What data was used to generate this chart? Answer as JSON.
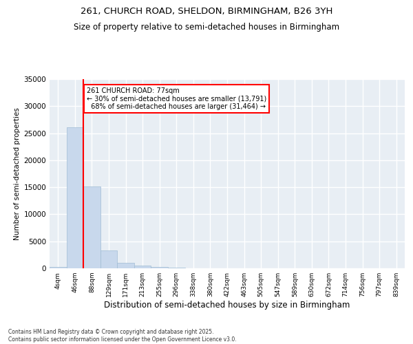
{
  "title": "261, CHURCH ROAD, SHELDON, BIRMINGHAM, B26 3YH",
  "subtitle": "Size of property relative to semi-detached houses in Birmingham",
  "xlabel": "Distribution of semi-detached houses by size in Birmingham",
  "ylabel": "Number of semi-detached properties",
  "bar_color": "#c8d8ec",
  "bar_edge_color": "#a0bcd4",
  "categories": [
    "4sqm",
    "46sqm",
    "88sqm",
    "129sqm",
    "171sqm",
    "213sqm",
    "255sqm",
    "296sqm",
    "338sqm",
    "380sqm",
    "422sqm",
    "463sqm",
    "505sqm",
    "547sqm",
    "589sqm",
    "630sqm",
    "672sqm",
    "714sqm",
    "756sqm",
    "797sqm",
    "839sqm"
  ],
  "values": [
    300,
    26100,
    15200,
    3300,
    1000,
    450,
    200,
    80,
    0,
    0,
    0,
    0,
    0,
    0,
    0,
    0,
    0,
    0,
    0,
    0,
    0
  ],
  "ylim": [
    0,
    35000
  ],
  "yticks": [
    0,
    5000,
    10000,
    15000,
    20000,
    25000,
    30000,
    35000
  ],
  "property_label": "261 CHURCH ROAD: 77sqm",
  "pct_smaller": 30,
  "pct_larger": 68,
  "n_smaller": 13791,
  "n_larger": 31464,
  "vline_position": 1.5,
  "background_color": "#e8eef4",
  "grid_color": "#ffffff",
  "footnote": "Contains HM Land Registry data © Crown copyright and database right 2025.\nContains public sector information licensed under the Open Government Licence v3.0."
}
